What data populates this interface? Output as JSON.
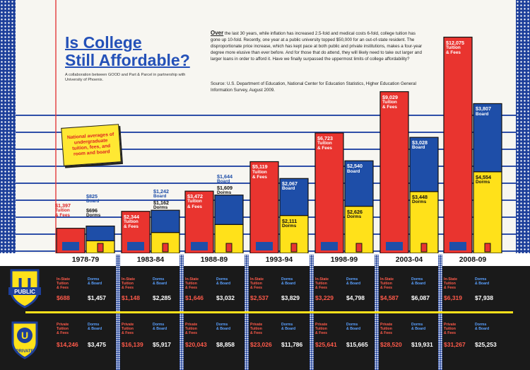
{
  "header": {
    "title_line1": "Is College",
    "title_line2": "Still Affordable?",
    "credit": "A collaboration between GOOD and Part & Parcel in partnership with University of Phoenix.",
    "intro_lead": "Over",
    "intro": " the last 30 years, while inflation has increased 2.5-fold and medical costs 6-fold, college tuition has gone up 10-fold. Recently, one year at a public university topped $50,000 for an out-of-state resident. The disproportionate price increase, which has kept pace at both public and private institutions, makes a four-year degree more elusive than ever before. And for those that do attend, they will likely need to take out larger and larger loans in order to afford it. Have we finally surpassed the uppermost limits of college affordability?",
    "source": "Source: U.S. Department of Education, National Center for Education Statistics, Higher Education General Information Survey, August 2009."
  },
  "sticky_note": "National averages of undergraduate tuition, fees, and room and board",
  "labels": {
    "tuition_fees": "Tuition & Fees",
    "board": "Board",
    "dorms": "Dorms",
    "in_state": "In-State Tuition & Fees",
    "private_tuition": "Private Tuition & Fees",
    "dorms_board": "Dorms & Board",
    "public_word": "PUBLIC",
    "private_word": "PRIVATE",
    "shield_letter": "U"
  },
  "chart_data": {
    "type": "bar",
    "categories": [
      "1978-79",
      "1983-84",
      "1988-89",
      "1993-94",
      "1998-99",
      "2003-04",
      "2008-09"
    ],
    "series": [
      {
        "name": "Tuition & Fees",
        "values": [
          1397,
          2344,
          3472,
          5119,
          6723,
          9029,
          12075
        ],
        "labels": [
          "$1,397",
          "$2,344",
          "$3,472",
          "$5,119",
          "$6,723",
          "$9,029",
          "$12,075"
        ]
      },
      {
        "name": "Board",
        "values": [
          825,
          1242,
          1644,
          2067,
          2540,
          3028,
          3807
        ],
        "labels": [
          "$825",
          "$1,242",
          "$1,644",
          "$2,067",
          "$2,540",
          "$3,028",
          "$3,807"
        ]
      },
      {
        "name": "Dorms",
        "values": [
          696,
          1162,
          1609,
          2111,
          2626,
          3448,
          4554
        ],
        "labels": [
          "$696",
          "$1,162",
          "$1,609",
          "$2,111",
          "$2,626",
          "$3,448",
          "$4,554"
        ]
      }
    ],
    "public": {
      "in_state_tuition": [
        "$688",
        "$1,148",
        "$1,646",
        "$2,537",
        "$3,229",
        "$4,587",
        "$6,319"
      ],
      "dorms_board": [
        "$1,457",
        "$2,285",
        "$3,032",
        "$3,829",
        "$4,798",
        "$6,087",
        "$7,938"
      ]
    },
    "private": {
      "tuition": [
        "$14,246",
        "$16,139",
        "$20,043",
        "$23,026",
        "$25,641",
        "$28,520",
        "$31,267"
      ],
      "dorms_board": [
        "$3,475",
        "$5,917",
        "$8,858",
        "$11,786",
        "$15,665",
        "$19,931",
        "$25,253"
      ]
    },
    "colors": {
      "tuition": "#e9342f",
      "board": "#1e4ea8",
      "dorms": "#ffe11a"
    }
  }
}
